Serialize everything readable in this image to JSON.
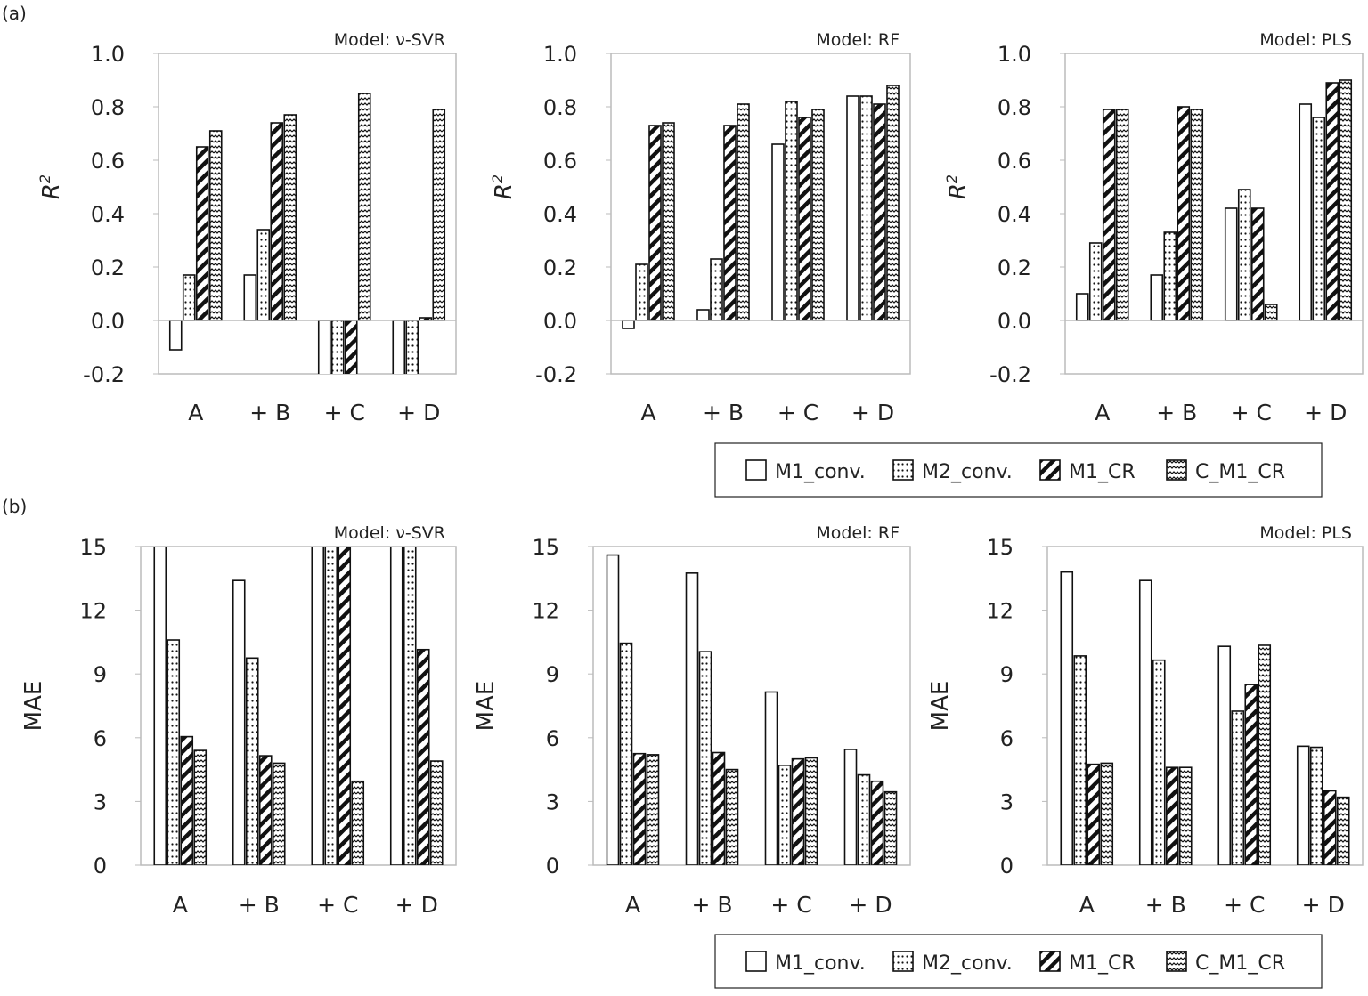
{
  "chart_data": [
    {
      "panel": "(a)",
      "type": "bar",
      "title": "Model: ν-SVR",
      "ylabel": "R2",
      "ylim": [
        -0.2,
        1.0
      ],
      "yticks": [
        "1.0",
        "0.8",
        "0.6",
        "0.4",
        "0.2",
        "0.0",
        "-0.2"
      ],
      "grid": false,
      "categories": [
        "A",
        "+ B",
        "+ C",
        "+ D"
      ],
      "series": [
        {
          "name": "M1_conv.",
          "values": [
            -0.11,
            0.17,
            -0.2,
            -0.2
          ]
        },
        {
          "name": "M2_conv.",
          "values": [
            0.17,
            0.34,
            -0.2,
            -0.2
          ]
        },
        {
          "name": "M1_CR",
          "values": [
            0.65,
            0.74,
            -0.2,
            0.01
          ]
        },
        {
          "name": "C_M1_CR",
          "values": [
            0.71,
            0.77,
            0.85,
            0.79
          ]
        }
      ]
    },
    {
      "type": "bar",
      "title": "Model: RF",
      "ylabel": "R2",
      "ylim": [
        -0.2,
        1.0
      ],
      "yticks": [
        "1.0",
        "0.8",
        "0.6",
        "0.4",
        "0.2",
        "0.0",
        "-0.2"
      ],
      "grid": false,
      "categories": [
        "A",
        "+ B",
        "+ C",
        "+ D"
      ],
      "series": [
        {
          "name": "M1_conv.",
          "values": [
            -0.03,
            0.04,
            0.66,
            0.84
          ]
        },
        {
          "name": "M2_conv.",
          "values": [
            0.21,
            0.23,
            0.82,
            0.84
          ]
        },
        {
          "name": "M1_CR",
          "values": [
            0.73,
            0.73,
            0.76,
            0.81
          ]
        },
        {
          "name": "C_M1_CR",
          "values": [
            0.74,
            0.81,
            0.79,
            0.88
          ]
        }
      ]
    },
    {
      "type": "bar",
      "title": "Model: PLS",
      "ylabel": "R2",
      "ylim": [
        -0.2,
        1.0
      ],
      "yticks": [
        "1.0",
        "0.8",
        "0.6",
        "0.4",
        "0.2",
        "0.0",
        "-0.2"
      ],
      "grid": false,
      "categories": [
        "A",
        "+ B",
        "+ C",
        "+ D"
      ],
      "series": [
        {
          "name": "M1_conv.",
          "values": [
            0.1,
            0.17,
            0.42,
            0.81
          ]
        },
        {
          "name": "M2_conv.",
          "values": [
            0.29,
            0.33,
            0.49,
            0.76
          ]
        },
        {
          "name": "M1_CR",
          "values": [
            0.79,
            0.8,
            0.42,
            0.89
          ]
        },
        {
          "name": "C_M1_CR",
          "values": [
            0.79,
            0.79,
            0.06,
            0.9
          ]
        }
      ]
    },
    {
      "panel": "(b)",
      "type": "bar",
      "title": "Model: ν-SVR",
      "ylabel": "MAE",
      "ylim": [
        0,
        15
      ],
      "yticks": [
        "15",
        "12",
        "9",
        "6",
        "3",
        "0"
      ],
      "grid": false,
      "categories": [
        "A",
        "+ B",
        "+ C",
        "+ D"
      ],
      "series": [
        {
          "name": "M1_conv.",
          "values": [
            15,
            13.4,
            15,
            15
          ]
        },
        {
          "name": "M2_conv.",
          "values": [
            10.6,
            9.75,
            15,
            15
          ]
        },
        {
          "name": "M1_CR",
          "values": [
            6.05,
            5.15,
            15,
            10.15
          ]
        },
        {
          "name": "C_M1_CR",
          "values": [
            5.4,
            4.8,
            3.95,
            4.9
          ]
        }
      ]
    },
    {
      "type": "bar",
      "title": "Model: RF",
      "ylabel": "MAE",
      "ylim": [
        0,
        15
      ],
      "yticks": [
        "15",
        "12",
        "9",
        "6",
        "3",
        "0"
      ],
      "grid": false,
      "categories": [
        "A",
        "+ B",
        "+ C",
        "+ D"
      ],
      "series": [
        {
          "name": "M1_conv.",
          "values": [
            14.6,
            13.75,
            8.15,
            5.45
          ]
        },
        {
          "name": "M2_conv.",
          "values": [
            10.45,
            10.05,
            4.7,
            4.25
          ]
        },
        {
          "name": "M1_CR",
          "values": [
            5.25,
            5.3,
            5.0,
            3.95
          ]
        },
        {
          "name": "C_M1_CR",
          "values": [
            5.2,
            4.5,
            5.05,
            3.45
          ]
        }
      ]
    },
    {
      "type": "bar",
      "title": "Model: PLS",
      "ylabel": "MAE",
      "ylim": [
        0,
        15
      ],
      "yticks": [
        "15",
        "12",
        "9",
        "6",
        "3",
        "0"
      ],
      "grid": false,
      "categories": [
        "A",
        "+ B",
        "+ C",
        "+ D"
      ],
      "series": [
        {
          "name": "M1_conv.",
          "values": [
            13.8,
            13.4,
            10.3,
            5.6
          ]
        },
        {
          "name": "M2_conv.",
          "values": [
            9.85,
            9.65,
            7.25,
            5.55
          ]
        },
        {
          "name": "M1_CR",
          "values": [
            4.75,
            4.6,
            8.5,
            3.5
          ]
        },
        {
          "name": "C_M1_CR",
          "values": [
            4.8,
            4.6,
            10.35,
            3.2
          ]
        }
      ]
    }
  ],
  "legend": {
    "placement": "bottom",
    "entries": [
      "M1_conv.",
      "M2_conv.",
      "M1_CR",
      "C_M1_CR"
    ]
  },
  "patterns": {
    "M1_conv.": "solid-white",
    "M2_conv.": "dotted",
    "M1_CR": "bold-diagonal",
    "C_M1_CR": "zigzag"
  }
}
